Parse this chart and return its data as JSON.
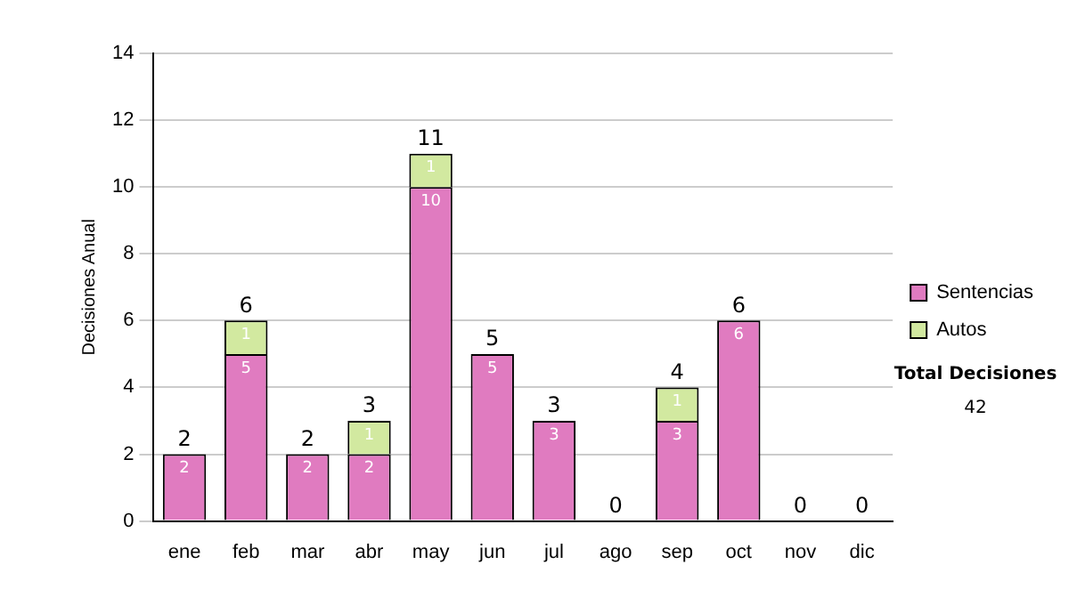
{
  "chart_data": {
    "type": "bar",
    "stacked": true,
    "ylabel": "Decisiones Anual",
    "categories": [
      "ene",
      "feb",
      "mar",
      "abr",
      "may",
      "jun",
      "jul",
      "ago",
      "sep",
      "oct",
      "nov",
      "dic"
    ],
    "series": [
      {
        "name": "Sentencias",
        "color": "#e07bc0",
        "values": [
          2,
          5,
          2,
          2,
          10,
          5,
          3,
          0,
          3,
          6,
          0,
          0
        ],
        "value_labels": [
          "2",
          "5",
          "2",
          "2",
          "10",
          "5",
          "3",
          null,
          "3",
          "6",
          null,
          null
        ]
      },
      {
        "name": "Autos",
        "color": "#d2e9a0",
        "values": [
          0,
          1,
          0,
          1,
          1,
          0,
          0,
          0,
          1,
          0,
          0,
          0
        ],
        "value_labels": [
          null,
          "1",
          null,
          "1",
          "1",
          null,
          null,
          null,
          "1",
          null,
          null,
          null
        ]
      }
    ],
    "totals": [
      "2",
      "6",
      "2",
      "3",
      "11",
      "5",
      "3",
      "0",
      "4",
      "6",
      "0",
      "0"
    ],
    "ylim": [
      0,
      14
    ],
    "yticks": [
      0,
      2,
      4,
      6,
      8,
      10,
      12,
      14
    ],
    "grid": "y",
    "legend": "right",
    "annotations": [
      "Total Decisiones",
      "42"
    ]
  }
}
